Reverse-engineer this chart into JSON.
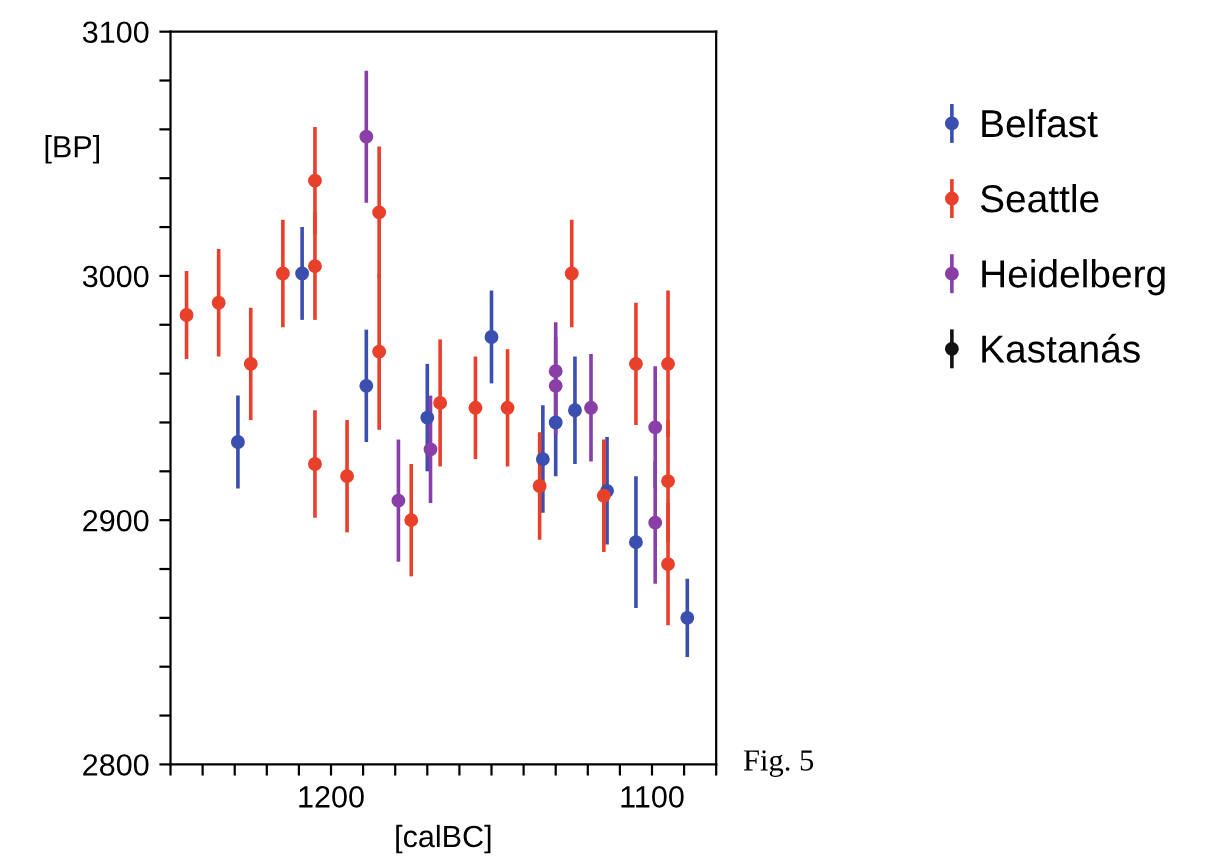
{
  "chart_data": {
    "type": "scatter",
    "xlabel": "[calBC]",
    "ylabel": "[BP]",
    "annotations": [
      "Fig. 5"
    ],
    "xlim": [
      1250,
      1080
    ],
    "ylim": [
      2800,
      3100
    ],
    "xticks": [
      {
        "value": 1250,
        "label": null
      },
      {
        "value": 1240,
        "label": null
      },
      {
        "value": 1230,
        "label": null
      },
      {
        "value": 1220,
        "label": null
      },
      {
        "value": 1210,
        "label": null
      },
      1200,
      {
        "value": 1190,
        "label": null
      },
      {
        "value": 1180,
        "label": null
      },
      {
        "value": 1170,
        "label": null
      },
      {
        "value": 1160,
        "label": null
      },
      {
        "value": 1150,
        "label": null
      },
      {
        "value": 1140,
        "label": null
      },
      {
        "value": 1130,
        "label": null
      },
      {
        "value": 1120,
        "label": null
      },
      {
        "value": 1110,
        "label": null
      },
      1100,
      {
        "value": 1090,
        "label": null
      },
      {
        "value": 1080,
        "label": null
      }
    ],
    "yticks": [
      2800,
      {
        "value": 2820,
        "label": null
      },
      {
        "value": 2840,
        "label": null
      },
      {
        "value": 2860,
        "label": null
      },
      {
        "value": 2880,
        "label": null
      },
      2900,
      {
        "value": 2920,
        "label": null
      },
      {
        "value": 2940,
        "label": null
      },
      {
        "value": 2960,
        "label": null
      },
      {
        "value": 2980,
        "label": null
      },
      3000,
      {
        "value": 3020,
        "label": null
      },
      {
        "value": 3040,
        "label": null
      },
      {
        "value": 3060,
        "label": null
      },
      {
        "value": 3080,
        "label": null
      },
      3100
    ],
    "grid": false,
    "legend": "right",
    "marker": "circle",
    "series": [
      {
        "name": "Belfast",
        "color": "#3a4fb0",
        "x": [
          1229,
          1209,
          1189,
          1170,
          1150,
          1134,
          1130,
          1124,
          1114,
          1105,
          1089
        ],
        "values": [
          2932,
          3001,
          2955,
          2942,
          2975,
          2925,
          2940,
          2945,
          2912,
          2891,
          2860
        ],
        "errors": [
          19,
          19,
          23,
          22,
          19,
          22,
          22,
          22,
          22,
          27,
          16
        ]
      },
      {
        "name": "Seattle",
        "color": "#e8402a",
        "x": [
          1245,
          1235,
          1225,
          1215,
          1205,
          1205,
          1205,
          1185,
          1185,
          1195,
          1175,
          1166,
          1155,
          1145,
          1135,
          1125,
          1115,
          1105,
          1095,
          1095,
          1095
        ],
        "values": [
          2984,
          2989,
          2964,
          3001,
          3004,
          3039,
          2923,
          3026,
          2969,
          2918,
          2900,
          2948,
          2946,
          2946,
          2914,
          3001,
          2910,
          2964,
          2964,
          2916,
          2882
        ],
        "errors": [
          18,
          22,
          23,
          22,
          22,
          22,
          22,
          27,
          32,
          23,
          23,
          26,
          21,
          24,
          22,
          22,
          23,
          25,
          30,
          25,
          25
        ]
      },
      {
        "name": "Heidelberg",
        "color": "#8a3fa8",
        "x": [
          1189,
          1179,
          1169,
          1130,
          1130,
          1119,
          1099,
          1099
        ],
        "values": [
          3057,
          2908,
          2929,
          2961,
          2955,
          2946,
          2938,
          2899
        ],
        "errors": [
          27,
          25,
          22,
          20,
          20,
          22,
          25,
          25
        ]
      },
      {
        "name": "Kastanás",
        "color": "#111111"
      }
    ]
  }
}
